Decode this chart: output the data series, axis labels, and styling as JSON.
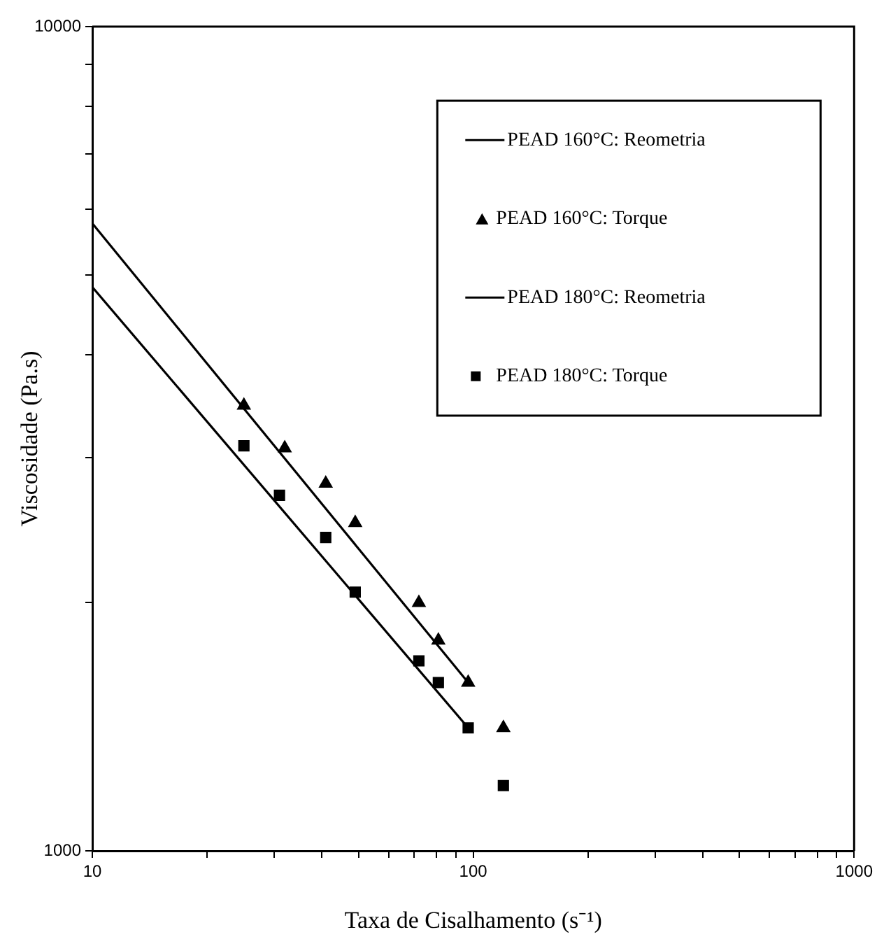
{
  "chart_data": {
    "type": "scatter",
    "xlabel": "Taxa de Cisalhamento (s⁻¹)",
    "ylabel": "Viscosidade (Pa.s)",
    "log": "xy",
    "grid": false,
    "legend": "top right",
    "xlim": [
      10,
      1000
    ],
    "xticks": [
      10,
      {
        "value": 20,
        "label": null
      },
      {
        "value": 30,
        "label": null
      },
      {
        "value": 40,
        "label": null
      },
      {
        "value": 50,
        "label": null
      },
      {
        "value": 60,
        "label": null
      },
      {
        "value": 70,
        "label": null
      },
      {
        "value": 80,
        "label": null
      },
      {
        "value": 90,
        "label": null
      },
      100,
      {
        "value": 200,
        "label": null
      },
      {
        "value": 300,
        "label": null
      },
      {
        "value": 400,
        "label": null
      },
      {
        "value": 500,
        "label": null
      },
      {
        "value": 600,
        "label": null
      },
      {
        "value": 700,
        "label": null
      },
      {
        "value": 800,
        "label": null
      },
      {
        "value": 900,
        "label": null
      },
      1000
    ],
    "ylim": [
      1000,
      10000
    ],
    "yticks": [
      1000,
      {
        "value": 2000,
        "label": null
      },
      {
        "value": 3000,
        "label": null
      },
      {
        "value": 4000,
        "label": null
      },
      {
        "value": 5000,
        "label": null
      },
      {
        "value": 6000,
        "label": null
      },
      {
        "value": 7000,
        "label": null
      },
      {
        "value": 8000,
        "label": null
      },
      {
        "value": 9000,
        "label": null
      },
      10000
    ],
    "series": [
      {
        "name": "PEAD 160°C: Reometria",
        "type": "line",
        "marker": "none",
        "color": "#000000",
        "x": [
          10,
          97
        ],
        "values": [
          5770,
          1600
        ]
      },
      {
        "name": "PEAD 160°C: Torque",
        "type": "scatter",
        "marker": "triangle",
        "color": "#000000",
        "x": [
          25,
          32,
          41,
          49,
          72,
          81,
          97,
          120
        ],
        "values": [
          3470,
          3080,
          2790,
          2500,
          2000,
          1800,
          1600,
          1410
        ]
      },
      {
        "name": "PEAD 180°C: Reometria",
        "type": "line",
        "marker": "none",
        "color": "#000000",
        "x": [
          10,
          97
        ],
        "values": [
          4830,
          1410
        ]
      },
      {
        "name": "PEAD 180°C: Torque",
        "type": "scatter",
        "marker": "square",
        "color": "#000000",
        "x": [
          25,
          31,
          41,
          49,
          72,
          81,
          97,
          120
        ],
        "values": [
          3100,
          2700,
          2400,
          2060,
          1700,
          1600,
          1410,
          1200
        ]
      }
    ]
  }
}
